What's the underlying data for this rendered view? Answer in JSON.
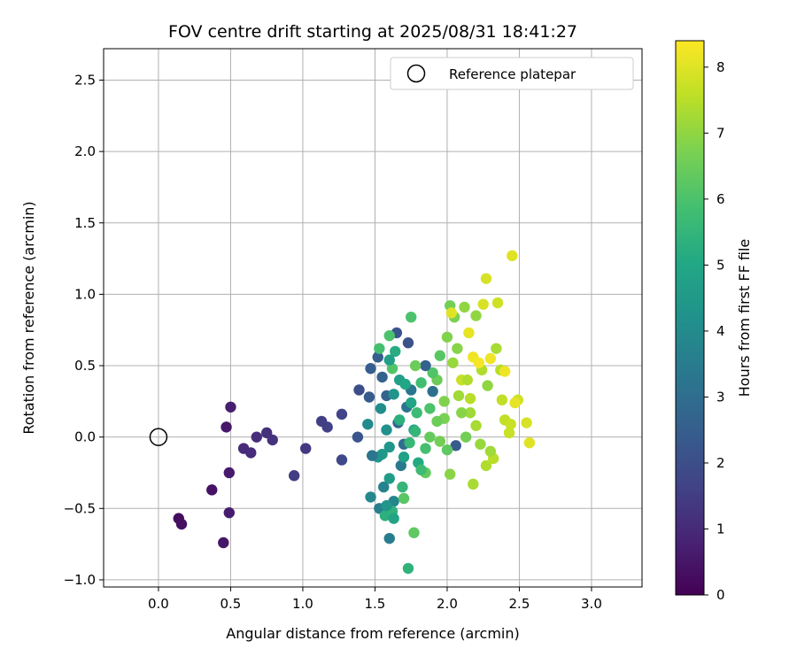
{
  "chart_data": {
    "type": "scatter",
    "title": "FOV centre drift starting at 2025/08/31 18:41:27",
    "xlabel": "Angular distance from reference (arcmin)",
    "ylabel": "Rotation from reference (arcmin)",
    "xlim": [
      -0.38,
      3.35
    ],
    "ylim": [
      -1.05,
      2.72
    ],
    "xticks": [
      0.0,
      0.5,
      1.0,
      1.5,
      2.0,
      2.5,
      3.0
    ],
    "xtick_labels": [
      "0.0",
      "0.5",
      "1.0",
      "1.5",
      "2.0",
      "2.5",
      "3.0"
    ],
    "yticks": [
      -1.0,
      -0.5,
      0.0,
      0.5,
      1.0,
      1.5,
      2.0,
      2.5
    ],
    "ytick_labels": [
      "−1.0",
      "−0.5",
      "0.0",
      "0.5",
      "1.0",
      "1.5",
      "2.0",
      "2.5"
    ],
    "grid": true,
    "legend": {
      "placement": "top-right",
      "entries": [
        "Reference platepar"
      ]
    },
    "reference_point": {
      "x": 0.0,
      "y": 0.0
    },
    "colorbar": {
      "label": "Hours from first FF file",
      "colormap": "viridis",
      "range": [
        0,
        8.4
      ],
      "ticks": [
        0,
        1,
        2,
        3,
        4,
        5,
        6,
        7,
        8
      ],
      "tick_labels": [
        "0",
        "1",
        "2",
        "3",
        "4",
        "5",
        "6",
        "7",
        "8"
      ]
    },
    "points": [
      [
        0.14,
        -0.57,
        0.3
      ],
      [
        0.16,
        -0.61,
        0.35
      ],
      [
        0.37,
        -0.37,
        0.4
      ],
      [
        0.45,
        -0.74,
        0.5
      ],
      [
        0.47,
        0.07,
        0.55
      ],
      [
        0.49,
        -0.25,
        0.6
      ],
      [
        0.49,
        -0.53,
        0.65
      ],
      [
        0.5,
        0.21,
        0.7
      ],
      [
        0.59,
        -0.08,
        1.0
      ],
      [
        0.64,
        -0.11,
        1.05
      ],
      [
        0.68,
        0.0,
        1.1
      ],
      [
        0.75,
        0.03,
        1.15
      ],
      [
        0.79,
        -0.02,
        1.2
      ],
      [
        1.02,
        -0.08,
        1.4
      ],
      [
        0.94,
        -0.27,
        1.5
      ],
      [
        1.13,
        0.11,
        1.55
      ],
      [
        1.17,
        0.07,
        1.6
      ],
      [
        1.27,
        0.16,
        1.7
      ],
      [
        1.27,
        -0.16,
        1.8
      ],
      [
        1.39,
        0.33,
        2.0
      ],
      [
        1.38,
        0.0,
        2.2
      ],
      [
        1.46,
        0.28,
        2.4
      ],
      [
        1.47,
        0.48,
        2.5
      ],
      [
        1.52,
        0.56,
        2.5
      ],
      [
        1.55,
        0.42,
        2.6
      ],
      [
        1.58,
        0.29,
        2.7
      ],
      [
        1.65,
        0.73,
        2.2
      ],
      [
        1.73,
        0.66,
        2.1
      ],
      [
        1.66,
        0.1,
        2.8
      ],
      [
        1.7,
        -0.05,
        3.0
      ],
      [
        1.72,
        0.21,
        3.2
      ],
      [
        1.75,
        0.33,
        3.3
      ],
      [
        1.68,
        -0.2,
        3.4
      ],
      [
        1.6,
        -0.71,
        3.5
      ],
      [
        1.53,
        -0.5,
        3.6
      ],
      [
        1.56,
        -0.35,
        3.7
      ],
      [
        1.63,
        -0.45,
        3.8
      ],
      [
        1.47,
        -0.42,
        3.9
      ],
      [
        1.45,
        0.09,
        4.0
      ],
      [
        1.54,
        0.2,
        4.1
      ],
      [
        1.58,
        0.05,
        4.2
      ],
      [
        1.63,
        0.3,
        4.3
      ],
      [
        1.6,
        -0.07,
        4.4
      ],
      [
        1.55,
        -0.12,
        4.5
      ],
      [
        1.6,
        -0.29,
        4.6
      ],
      [
        1.67,
        0.4,
        4.7
      ],
      [
        1.7,
        -0.14,
        4.8
      ],
      [
        1.75,
        0.24,
        4.9
      ],
      [
        1.77,
        0.05,
        5.0
      ],
      [
        1.8,
        -0.18,
        5.1
      ],
      [
        1.64,
        0.6,
        5.2
      ],
      [
        1.57,
        -0.55,
        5.3
      ],
      [
        1.62,
        -0.52,
        5.4
      ],
      [
        1.69,
        -0.35,
        5.5
      ],
      [
        1.74,
        -0.04,
        5.6
      ],
      [
        1.79,
        0.17,
        5.7
      ],
      [
        1.82,
        0.38,
        5.8
      ],
      [
        1.53,
        0.62,
        5.9
      ],
      [
        1.6,
        0.71,
        6.0
      ],
      [
        1.75,
        0.84,
        6.0
      ],
      [
        1.62,
        0.48,
        6.1
      ],
      [
        1.7,
        -0.43,
        6.2
      ],
      [
        1.73,
        -0.92,
        5.4
      ],
      [
        1.77,
        -0.67,
        6.3
      ],
      [
        1.85,
        -0.25,
        6.4
      ],
      [
        1.88,
        0.0,
        6.4
      ],
      [
        1.93,
        0.4,
        6.5
      ],
      [
        2.02,
        0.92,
        6.6
      ],
      [
        2.05,
        0.84,
        6.7
      ],
      [
        2.0,
        0.7,
        6.8
      ],
      [
        2.12,
        0.91,
        7.0
      ],
      [
        2.2,
        0.85,
        7.0
      ],
      [
        1.95,
        -0.03,
        6.6
      ],
      [
        1.98,
        0.25,
        6.8
      ],
      [
        2.02,
        -0.26,
        6.9
      ],
      [
        2.04,
        0.52,
        7.1
      ],
      [
        2.08,
        0.29,
        7.2
      ],
      [
        2.16,
        0.17,
        7.2
      ],
      [
        2.18,
        -0.33,
        7.3
      ],
      [
        2.2,
        0.08,
        7.3
      ],
      [
        2.24,
        0.47,
        7.4
      ],
      [
        2.27,
        -0.2,
        7.4
      ],
      [
        2.32,
        -0.15,
        7.5
      ],
      [
        2.37,
        0.47,
        7.5
      ],
      [
        2.4,
        0.12,
        7.6
      ],
      [
        2.43,
        0.03,
        7.7
      ],
      [
        2.49,
        0.26,
        7.8
      ],
      [
        2.55,
        0.1,
        7.9
      ],
      [
        2.57,
        -0.04,
        8.0
      ],
      [
        2.45,
        1.27,
        8.0
      ],
      [
        2.27,
        1.11,
        7.9
      ],
      [
        2.35,
        0.94,
        7.8
      ],
      [
        2.25,
        0.93,
        7.9
      ],
      [
        2.03,
        0.87,
        8.0
      ],
      [
        2.15,
        0.73,
        8.1
      ],
      [
        2.18,
        0.56,
        8.2
      ],
      [
        2.22,
        0.52,
        8.3
      ],
      [
        2.3,
        0.55,
        8.2
      ],
      [
        2.4,
        0.46,
        8.2
      ],
      [
        2.47,
        0.24,
        8.1
      ],
      [
        2.1,
        0.4,
        7.7
      ],
      [
        1.98,
        0.13,
        6.7
      ],
      [
        1.9,
        0.45,
        6.1
      ],
      [
        1.85,
        -0.08,
        5.9
      ],
      [
        1.93,
        0.11,
        6.5
      ],
      [
        2.06,
        -0.06,
        2.4
      ],
      [
        1.85,
        0.5,
        2.6
      ],
      [
        1.9,
        0.32,
        3.1
      ],
      [
        1.67,
        0.12,
        5.3
      ],
      [
        1.71,
        0.37,
        5.0
      ],
      [
        1.52,
        -0.14,
        4.3
      ],
      [
        1.48,
        -0.13,
        3.3
      ],
      [
        1.6,
        0.54,
        4.7
      ],
      [
        1.78,
        0.04,
        5.5
      ],
      [
        1.82,
        -0.23,
        5.7
      ],
      [
        2.1,
        0.17,
        6.9
      ],
      [
        2.13,
        0.0,
        6.6
      ],
      [
        2.23,
        -0.05,
        7.1
      ],
      [
        2.3,
        -0.1,
        7.2
      ],
      [
        2.16,
        0.27,
        7.5
      ],
      [
        2.28,
        0.36,
        7.0
      ],
      [
        2.34,
        0.62,
        7.3
      ],
      [
        2.38,
        0.26,
        7.6
      ],
      [
        2.44,
        0.09,
        7.7
      ],
      [
        1.95,
        0.57,
        6.2
      ],
      [
        2.07,
        0.62,
        6.9
      ],
      [
        1.88,
        0.2,
        6.0
      ],
      [
        1.78,
        0.5,
        6.5
      ],
      [
        2.0,
        -0.09,
        6.3
      ],
      [
        2.14,
        0.4,
        7.4
      ],
      [
        1.63,
        -0.57,
        4.9
      ],
      [
        1.58,
        -0.48,
        4.4
      ]
    ]
  }
}
